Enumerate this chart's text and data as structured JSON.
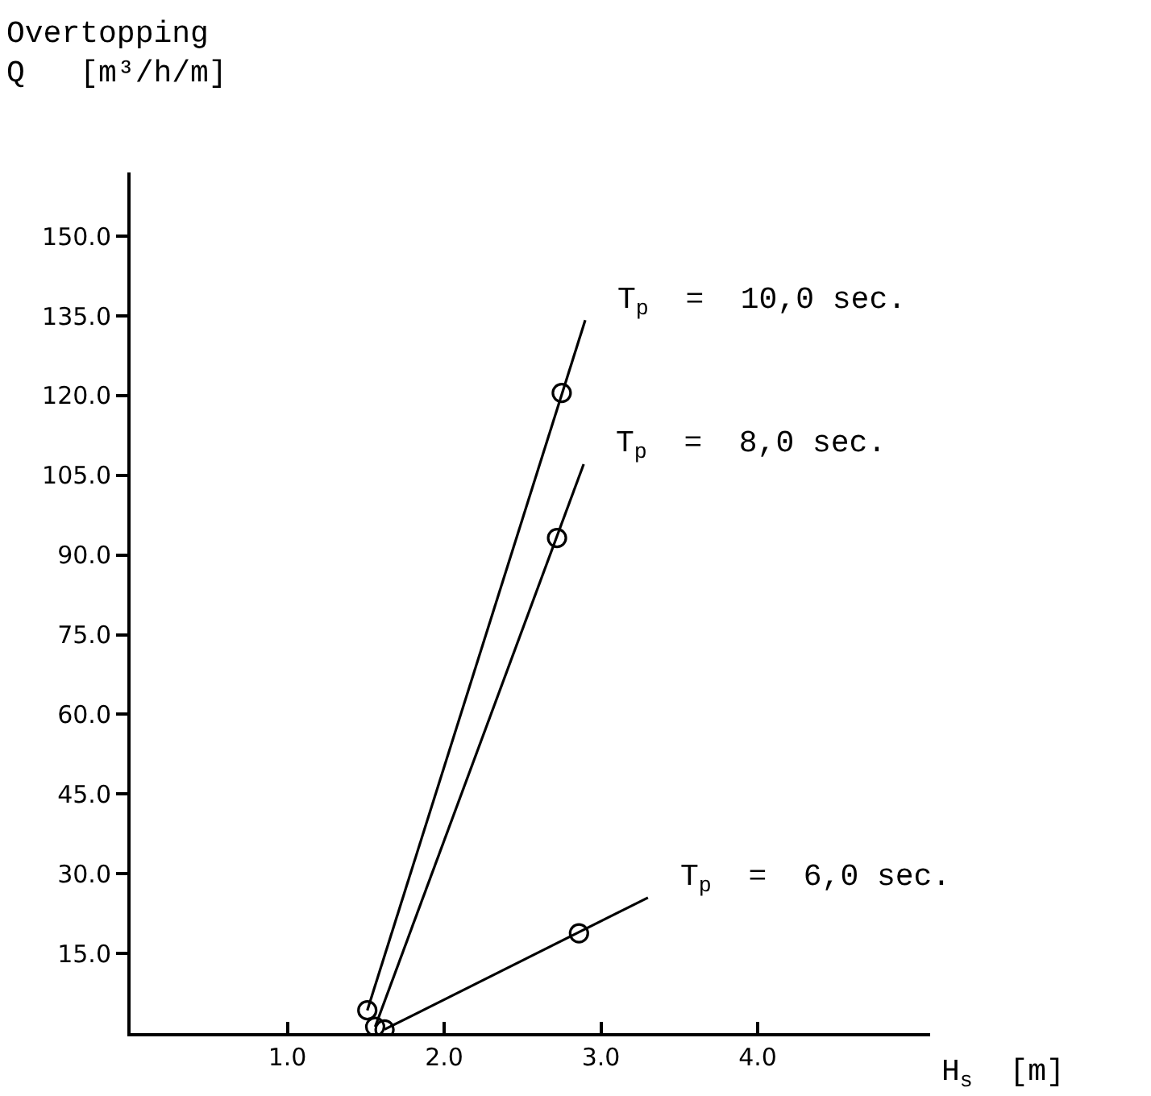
{
  "chart_data": {
    "type": "line",
    "ylabel": "Overtopping\nQ   [m³/h/m]",
    "xlabel": "H$_{s}$  [m]",
    "xlim": [
      0,
      5.1
    ],
    "ylim": [
      0,
      162
    ],
    "xticks": [
      {
        "value": 1,
        "label": "1.0"
      },
      {
        "value": 2,
        "label": "2.0"
      },
      {
        "value": 3,
        "label": "3.0"
      },
      {
        "value": 4,
        "label": "4.0"
      }
    ],
    "yticks": [
      {
        "value": 15,
        "label": "15.0"
      },
      {
        "value": 30,
        "label": "30.0"
      },
      {
        "value": 45,
        "label": "45.0"
      },
      {
        "value": 60,
        "label": "60.0"
      },
      {
        "value": 75,
        "label": "75.0"
      },
      {
        "value": 90,
        "label": "90.0"
      },
      {
        "value": 105,
        "label": "105.0"
      },
      {
        "value": 120,
        "label": "120.0"
      },
      {
        "value": 135,
        "label": "135.0"
      },
      {
        "value": 150,
        "label": "150.0"
      }
    ],
    "legend": false,
    "marker": "circle",
    "series": [
      {
        "name": "T$_{p}$  =  10,0 sec.",
        "marker": "none",
        "color": "#000000",
        "x": [
          1.51,
          2.9
        ],
        "values": [
          4.3,
          134.2
        ]
      },
      {
        "name": "T$_{p}$  =  8,0 sec.",
        "marker": "none",
        "color": "#000000",
        "x": [
          1.56,
          2.89
        ],
        "values": [
          1.2,
          107.1
        ]
      },
      {
        "name": "T$_{p}$  =  6,0 sec.",
        "marker": "none",
        "color": "#000000",
        "x": [
          1.62,
          3.3
        ],
        "values": [
          0.7,
          25.5
        ]
      },
      {
        "type": "scatter",
        "color": "#000000",
        "x": [
          1.51,
          2.75,
          1.56,
          2.72,
          1.62,
          2.86
        ],
        "values": [
          4.3,
          120.5,
          1.2,
          93.2,
          0.7,
          18.8
        ]
      }
    ]
  }
}
